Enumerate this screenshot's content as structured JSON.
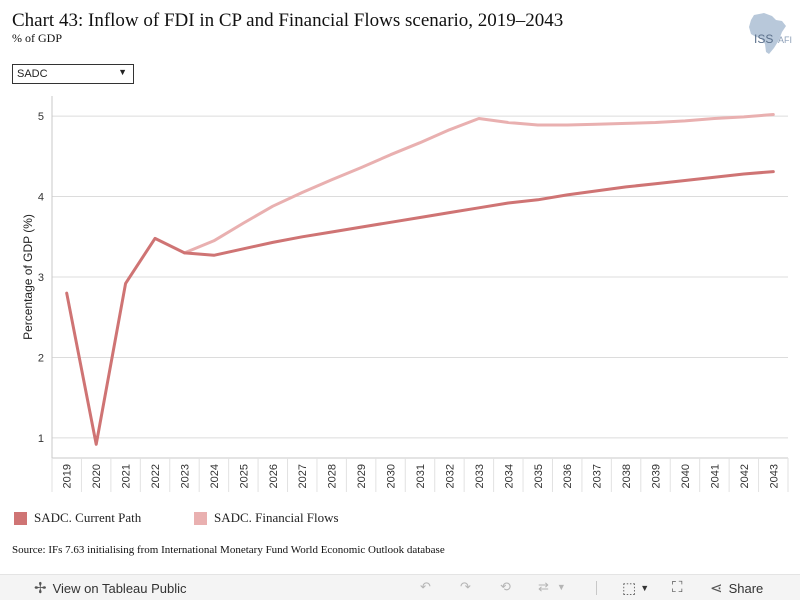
{
  "header": {
    "title": "Chart 43: Inflow of FDI in CP and Financial Flows scenario, 2019–2043",
    "subtitle": "% of GDP",
    "logo_text": "ISS",
    "logo_suffix": "AFI"
  },
  "filter": {
    "selected": "SADC"
  },
  "chart_data": {
    "type": "line",
    "ylabel": "Percentage of GDP (%)",
    "ylim": [
      0.75,
      5.25
    ],
    "yticks": [
      1,
      2,
      3,
      4,
      5
    ],
    "grid": true,
    "x": [
      "2019",
      "2020",
      "2021",
      "2022",
      "2023",
      "2024",
      "2025",
      "2026",
      "2027",
      "2028",
      "2029",
      "2030",
      "2031",
      "2032",
      "2033",
      "2034",
      "2035",
      "2036",
      "2037",
      "2038",
      "2039",
      "2040",
      "2041",
      "2042",
      "2043"
    ],
    "series": [
      {
        "name": "SADC. Current Path",
        "color": "#cf7474",
        "values": [
          2.8,
          0.92,
          2.92,
          3.48,
          3.3,
          3.27,
          3.35,
          3.43,
          3.5,
          3.56,
          3.62,
          3.68,
          3.74,
          3.8,
          3.86,
          3.92,
          3.96,
          4.02,
          4.07,
          4.12,
          4.16,
          4.2,
          4.24,
          4.28,
          4.31
        ]
      },
      {
        "name": "SADC. Financial Flows",
        "color": "#e9b0b0",
        "values": [
          null,
          null,
          null,
          null,
          3.3,
          3.45,
          3.67,
          3.88,
          4.05,
          4.21,
          4.36,
          4.52,
          4.67,
          4.83,
          4.97,
          4.92,
          4.89,
          4.89,
          4.9,
          4.91,
          4.92,
          4.94,
          4.97,
          4.99,
          5.02
        ]
      }
    ]
  },
  "source": "Source: IFs 7.63 initialising from International Monetary Fund World Economic Outlook database",
  "toolbar": {
    "view_label": "View on Tableau Public",
    "share_label": "Share"
  }
}
